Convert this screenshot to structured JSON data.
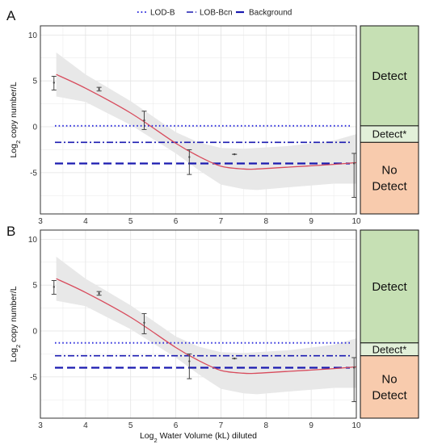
{
  "legend": {
    "items": [
      {
        "label": "LOD-B",
        "style": "dotted",
        "color": "#3333dd"
      },
      {
        "label": "LOB-Bcn",
        "style": "dashdot",
        "color": "#1a1ab0"
      },
      {
        "label": "Background",
        "style": "dashed",
        "color": "#1a1ab0"
      }
    ]
  },
  "colors": {
    "panel_bg": "#ffffff",
    "grid": "#e3e3e3",
    "ribbon": "#e8e8e8",
    "fit_line": "#d84b5c",
    "points": "#444444",
    "detect_zone": "#c6e0b4",
    "detect_star_zone": "#e2f0d9",
    "no_detect_zone": "#f8cbad"
  },
  "chart_data": [
    {
      "panel_label": "A",
      "type": "line",
      "xlabel": "",
      "ylabel": "Log2 copy number/L",
      "xlim": [
        3,
        10
      ],
      "ylim": [
        -9.5,
        11
      ],
      "x_ticks": [
        3,
        4,
        5,
        6,
        7,
        8,
        9,
        10
      ],
      "y_ticks": [
        -5,
        0,
        5,
        10
      ],
      "grid": true,
      "points": [
        {
          "x": 3.3,
          "y": 4.8,
          "ylo": 4.0,
          "yhi": 5.5
        },
        {
          "x": 4.3,
          "y": 4.1,
          "ylo": 3.9,
          "yhi": 4.3
        },
        {
          "x": 5.3,
          "y": 0.7,
          "ylo": -0.3,
          "yhi": 1.7
        },
        {
          "x": 6.3,
          "y": -3.3,
          "ylo": -5.2,
          "yhi": -2.5
        },
        {
          "x": 7.3,
          "y": -3.0,
          "ylo": -3.0,
          "yhi": -3.0
        },
        {
          "x": 9.95,
          "y": -4.0,
          "ylo": -7.7,
          "yhi": -2.9
        }
      ],
      "fit": {
        "x": [
          3.35,
          4.0,
          5.0,
          6.0,
          6.5,
          7.0,
          7.5,
          7.8,
          8.5,
          9.5,
          10.0
        ],
        "y": [
          5.7,
          4.2,
          1.5,
          -1.8,
          -3.2,
          -4.3,
          -4.6,
          -4.6,
          -4.4,
          -4.1,
          -3.9
        ],
        "ci_low": [
          3.3,
          2.7,
          0.2,
          -2.9,
          -4.7,
          -6.3,
          -6.8,
          -6.9,
          -6.6,
          -6.2,
          -6.2
        ],
        "ci_high": [
          8.1,
          5.7,
          2.8,
          -0.6,
          -1.7,
          -2.3,
          -2.4,
          -2.3,
          -2.1,
          -1.5,
          -0.8
        ]
      },
      "thresholds": {
        "lod_b": 0.1,
        "lob_bcn": -1.7,
        "background": -4.0
      },
      "zones": [
        {
          "label": "Detect",
          "y_from": 0.1,
          "y_to": 11
        },
        {
          "label": "Detect*",
          "y_from": -1.7,
          "y_to": 0.1
        },
        {
          "label": "No\nDetect",
          "y_from": -9.5,
          "y_to": -1.7
        }
      ]
    },
    {
      "panel_label": "B",
      "type": "line",
      "xlabel": "Log2 Water Volume (kL) diluted",
      "ylabel": "Log2 copy number/L",
      "xlim": [
        3,
        10
      ],
      "ylim": [
        -9.5,
        11
      ],
      "x_ticks": [
        3,
        4,
        5,
        6,
        7,
        8,
        9,
        10
      ],
      "y_ticks": [
        -5,
        0,
        5,
        10
      ],
      "grid": true,
      "points": [
        {
          "x": 3.3,
          "y": 4.8,
          "ylo": 4.0,
          "yhi": 5.5
        },
        {
          "x": 4.3,
          "y": 4.1,
          "ylo": 3.9,
          "yhi": 4.3
        },
        {
          "x": 5.3,
          "y": 0.9,
          "ylo": -0.3,
          "yhi": 1.9
        },
        {
          "x": 6.3,
          "y": -3.3,
          "ylo": -5.2,
          "yhi": -2.5
        },
        {
          "x": 7.3,
          "y": -3.0,
          "ylo": -3.0,
          "yhi": -3.0
        },
        {
          "x": 9.95,
          "y": -4.0,
          "ylo": -7.7,
          "yhi": -2.9
        }
      ],
      "fit": {
        "x": [
          3.35,
          4.0,
          5.0,
          6.0,
          6.5,
          7.0,
          7.5,
          7.8,
          8.5,
          9.5,
          10.0
        ],
        "y": [
          5.7,
          4.2,
          1.5,
          -1.8,
          -3.2,
          -4.3,
          -4.6,
          -4.6,
          -4.4,
          -4.1,
          -3.9
        ],
        "ci_low": [
          3.3,
          2.7,
          0.2,
          -2.9,
          -4.7,
          -6.3,
          -6.8,
          -6.9,
          -6.6,
          -6.2,
          -6.2
        ],
        "ci_high": [
          8.1,
          5.7,
          2.8,
          -0.6,
          -1.7,
          -2.3,
          -2.4,
          -2.3,
          -2.1,
          -1.5,
          -0.8
        ]
      },
      "thresholds": {
        "lod_b": -1.3,
        "lob_bcn": -2.7,
        "background": -4.0
      },
      "zones": [
        {
          "label": "Detect",
          "y_from": -1.3,
          "y_to": 11
        },
        {
          "label": "Detect*",
          "y_from": -2.7,
          "y_to": -1.3
        },
        {
          "label": "No\nDetect",
          "y_from": -9.5,
          "y_to": -2.7
        }
      ]
    }
  ]
}
